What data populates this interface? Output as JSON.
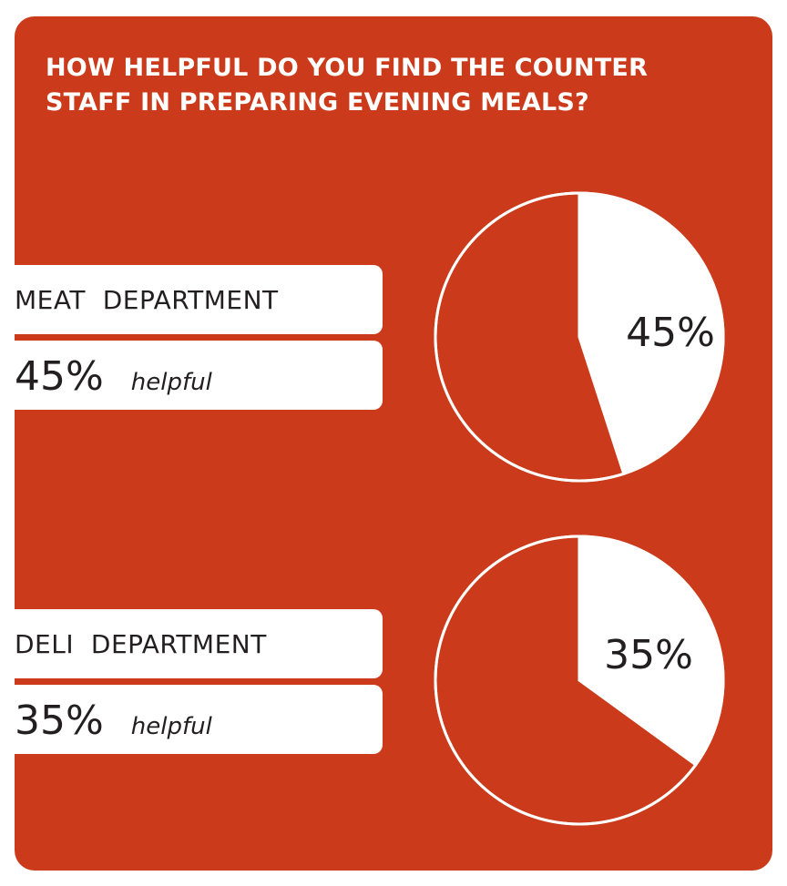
{
  "title": "HOW HELPFUL DO YOU FIND THE COUNTER STAFF IN PREPARING EVENING MEALS?",
  "colors": {
    "background": "#cb3b1b",
    "highlight": "#ffffff",
    "text": "#231f20"
  },
  "chart_data": [
    {
      "type": "pie",
      "category": "MEAT  DEPARTMENT",
      "value_text": "45%",
      "value_word": "helpful",
      "slices": [
        {
          "label": "45%",
          "value": 45,
          "color": "#ffffff"
        },
        {
          "label": "",
          "value": 55,
          "color": "#cb3b1b"
        }
      ]
    },
    {
      "type": "pie",
      "category": "DELI  DEPARTMENT",
      "value_text": "35%",
      "value_word": "helpful",
      "slices": [
        {
          "label": "35%",
          "value": 35,
          "color": "#ffffff"
        },
        {
          "label": "",
          "value": 65,
          "color": "#cb3b1b"
        }
      ]
    }
  ]
}
